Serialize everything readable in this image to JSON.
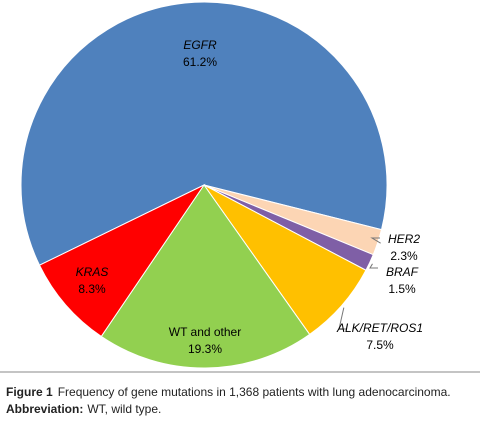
{
  "chart_data": {
    "type": "pie",
    "categories": [
      "EGFR",
      "HER2",
      "BRAF",
      "ALK/RET/ROS1",
      "WT and other",
      "KRAS"
    ],
    "values": [
      61.2,
      2.3,
      1.5,
      7.5,
      19.3,
      8.3
    ],
    "value_labels": [
      "61.2%",
      "2.3%",
      "1.5%",
      "7.5%",
      "19.3%",
      "8.3%"
    ],
    "colors": [
      "#4f81bd",
      "#fcd5b4",
      "#7f5fa6",
      "#ffc000",
      "#92d050",
      "#ff0000"
    ],
    "caption": {
      "label": "Figure 1",
      "text": "Frequency of gene mutations in 1,368 patients with lung adenocarcinoma.",
      "abbreviation_label": "Abbreviation:",
      "abbreviation_text": "WT, wild type."
    }
  }
}
